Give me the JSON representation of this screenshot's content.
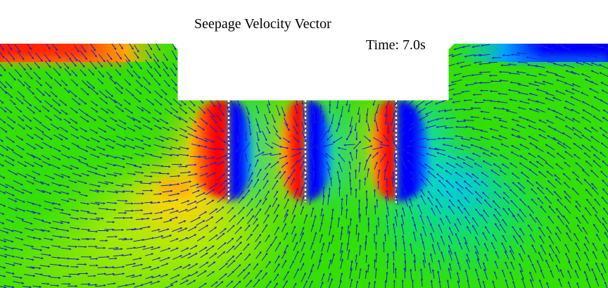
{
  "title": "Seepage Velocity Vector",
  "time_label": "Time: 7.0s",
  "colors": {
    "background": "#ffffff",
    "field_base": "#33e000",
    "high": "#ff0000",
    "mid_high": "#ffe000",
    "low": "#0000ff",
    "mid_low": "#00e0e0",
    "vector": "#1f1fd6"
  },
  "icons": {
    "vector_arrow": "arrow-icon"
  }
}
